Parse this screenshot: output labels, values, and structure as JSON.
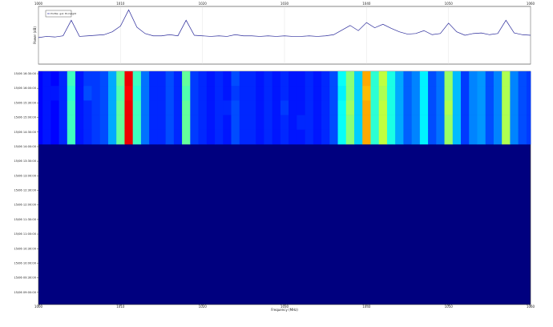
{
  "chart_data": [
    {
      "type": "line",
      "y_label": "Power (dB)",
      "x": [
        1000,
        1001,
        1002,
        1003,
        1004,
        1005,
        1006,
        1007,
        1008,
        1009,
        1010,
        1011,
        1012,
        1013,
        1014,
        1015,
        1016,
        1017,
        1018,
        1019,
        1020,
        1021,
        1022,
        1023,
        1024,
        1025,
        1026,
        1027,
        1028,
        1029,
        1030,
        1031,
        1032,
        1033,
        1034,
        1035,
        1036,
        1037,
        1038,
        1039,
        1040,
        1041,
        1042,
        1043,
        1044,
        1045,
        1046,
        1047,
        1048,
        1049,
        1050,
        1051,
        1052,
        1053,
        1054,
        1055,
        1056,
        1057,
        1058,
        1059,
        1060
      ],
      "series": [
        {
          "name": "Profile: gs1 3h-height",
          "color": "#2a2a9a",
          "values": [
            4.6,
            4.8,
            4.7,
            4.9,
            7.6,
            4.8,
            4.9,
            5.0,
            5.1,
            5.6,
            6.6,
            9.4,
            6.4,
            5.3,
            4.9,
            4.9,
            5.1,
            4.9,
            7.6,
            5.0,
            4.9,
            4.8,
            4.9,
            4.8,
            5.1,
            4.9,
            4.9,
            4.8,
            4.9,
            4.8,
            4.9,
            4.8,
            4.8,
            4.9,
            4.8,
            4.9,
            5.1,
            5.9,
            6.7,
            5.8,
            7.2,
            6.3,
            6.9,
            6.2,
            5.6,
            5.2,
            5.3,
            5.8,
            5.1,
            5.3,
            7.1,
            5.6,
            5.0,
            5.3,
            5.4,
            5.1,
            5.3,
            7.6,
            5.4,
            5.1,
            5.0
          ]
        }
      ],
      "xlim": [
        1000,
        1060
      ],
      "xticks": [
        1000,
        1010,
        1020,
        1030,
        1040,
        1050,
        1060
      ],
      "ylim": [
        0,
        10
      ],
      "grid": true,
      "legend": "upper left"
    },
    {
      "type": "heatmap",
      "x_label": "Frequency (MHz)",
      "x": [
        1000,
        1001,
        1002,
        1003,
        1004,
        1005,
        1006,
        1007,
        1008,
        1009,
        1010,
        1011,
        1012,
        1013,
        1014,
        1015,
        1016,
        1017,
        1018,
        1019,
        1020,
        1021,
        1022,
        1023,
        1024,
        1025,
        1026,
        1027,
        1028,
        1029,
        1030,
        1031,
        1032,
        1033,
        1034,
        1035,
        1036,
        1037,
        1038,
        1039,
        1040,
        1041,
        1042,
        1043,
        1044,
        1045,
        1046,
        1047,
        1048,
        1049,
        1050,
        1051,
        1052,
        1053,
        1054,
        1055,
        1056,
        1057,
        1058,
        1059,
        1060
      ],
      "xlim": [
        1000,
        1060
      ],
      "xticks": [
        1000,
        1010,
        1020,
        1030,
        1040,
        1050,
        1060
      ],
      "times": [
        "15/06 16:30:00",
        "15/06 16:00:00",
        "15/06 15:30:00",
        "15/06 15:00:00",
        "15/06 14:30:00",
        "15/06 14:00:00",
        "15/06 13:30:00",
        "15/06 13:00:00",
        "15/06 12:30:00",
        "15/06 12:00:00",
        "15/06 11:30:00",
        "15/06 11:00:00",
        "15/06 10:30:00",
        "15/06 10:00:00",
        "15/06 09:30:00",
        "15/06 09:00:00"
      ],
      "colormap": "jet",
      "zlim": [
        4,
        9.5
      ],
      "z": [
        [
          4.7,
          4.8,
          4.7,
          4.9,
          6.4,
          4.8,
          5.0,
          5.0,
          5.1,
          5.6,
          6.6,
          8.9,
          6.4,
          5.3,
          4.9,
          4.9,
          5.1,
          4.9,
          6.6,
          5.0,
          4.9,
          4.8,
          4.9,
          4.8,
          5.1,
          4.9,
          4.9,
          4.8,
          4.9,
          4.8,
          4.9,
          4.8,
          4.8,
          4.9,
          4.8,
          4.9,
          5.1,
          6.1,
          6.8,
          5.8,
          7.9,
          6.3,
          7.1,
          6.2,
          5.6,
          5.2,
          5.4,
          6.0,
          5.1,
          5.3,
          6.9,
          5.7,
          5.0,
          5.4,
          5.5,
          5.1,
          5.4,
          7.0,
          5.4,
          5.1,
          5.0
        ],
        [
          4.7,
          4.8,
          4.8,
          4.9,
          6.3,
          4.8,
          5.1,
          5.0,
          5.1,
          5.6,
          6.5,
          8.8,
          6.3,
          5.3,
          4.9,
          4.9,
          5.1,
          4.9,
          6.5,
          5.0,
          4.9,
          4.8,
          4.9,
          4.8,
          5.0,
          4.9,
          4.9,
          4.8,
          4.9,
          4.8,
          4.9,
          4.8,
          4.8,
          4.9,
          4.8,
          4.9,
          5.1,
          6.0,
          6.8,
          5.8,
          7.8,
          6.3,
          7.0,
          6.2,
          5.6,
          5.2,
          5.4,
          6.0,
          5.1,
          5.3,
          6.9,
          5.7,
          5.0,
          5.4,
          5.5,
          5.1,
          5.4,
          7.0,
          5.4,
          5.1,
          5.0
        ],
        [
          4.7,
          4.8,
          4.7,
          4.9,
          6.4,
          4.8,
          4.9,
          5.0,
          5.1,
          5.6,
          6.6,
          8.9,
          6.4,
          5.3,
          4.9,
          4.9,
          5.1,
          4.9,
          6.6,
          5.0,
          4.9,
          4.8,
          4.9,
          4.9,
          5.1,
          4.9,
          4.9,
          4.8,
          4.9,
          4.8,
          5.0,
          4.8,
          4.8,
          4.9,
          4.8,
          4.9,
          5.1,
          6.1,
          6.9,
          5.8,
          7.9,
          6.3,
          7.1,
          6.2,
          5.6,
          5.2,
          5.4,
          6.0,
          5.1,
          5.3,
          7.0,
          5.7,
          5.0,
          5.4,
          5.5,
          5.1,
          5.4,
          7.0,
          5.4,
          5.1,
          5.0
        ],
        [
          4.7,
          4.8,
          4.7,
          4.9,
          6.4,
          4.8,
          4.9,
          5.0,
          5.1,
          5.6,
          6.6,
          8.9,
          6.4,
          5.3,
          4.9,
          4.9,
          5.1,
          4.9,
          6.6,
          5.0,
          4.9,
          4.8,
          4.9,
          4.8,
          5.1,
          4.9,
          4.9,
          4.8,
          4.9,
          4.8,
          4.9,
          4.8,
          4.9,
          4.9,
          4.8,
          4.9,
          5.1,
          6.1,
          6.8,
          5.8,
          7.9,
          6.3,
          7.1,
          6.2,
          5.6,
          5.2,
          5.4,
          6.0,
          5.1,
          5.3,
          6.9,
          5.7,
          5.0,
          5.4,
          5.5,
          5.1,
          5.4,
          7.0,
          5.4,
          5.1,
          5.0
        ],
        [
          4.7,
          4.8,
          4.7,
          4.9,
          6.4,
          4.8,
          4.9,
          5.0,
          5.1,
          5.6,
          6.6,
          8.9,
          6.4,
          5.3,
          4.9,
          4.9,
          5.1,
          4.9,
          6.6,
          5.0,
          4.9,
          4.8,
          4.9,
          4.8,
          5.1,
          4.9,
          4.9,
          4.8,
          4.9,
          4.8,
          4.9,
          4.8,
          4.8,
          4.9,
          4.8,
          4.9,
          5.1,
          6.1,
          6.8,
          5.8,
          7.9,
          6.3,
          7.1,
          6.2,
          5.6,
          5.2,
          5.4,
          6.0,
          5.1,
          5.3,
          6.9,
          5.7,
          5.0,
          5.4,
          5.5,
          5.1,
          5.4,
          7.0,
          5.4,
          5.1,
          5.0
        ],
        null,
        null,
        null,
        null,
        null,
        null,
        null,
        null,
        null,
        null,
        null
      ]
    }
  ]
}
